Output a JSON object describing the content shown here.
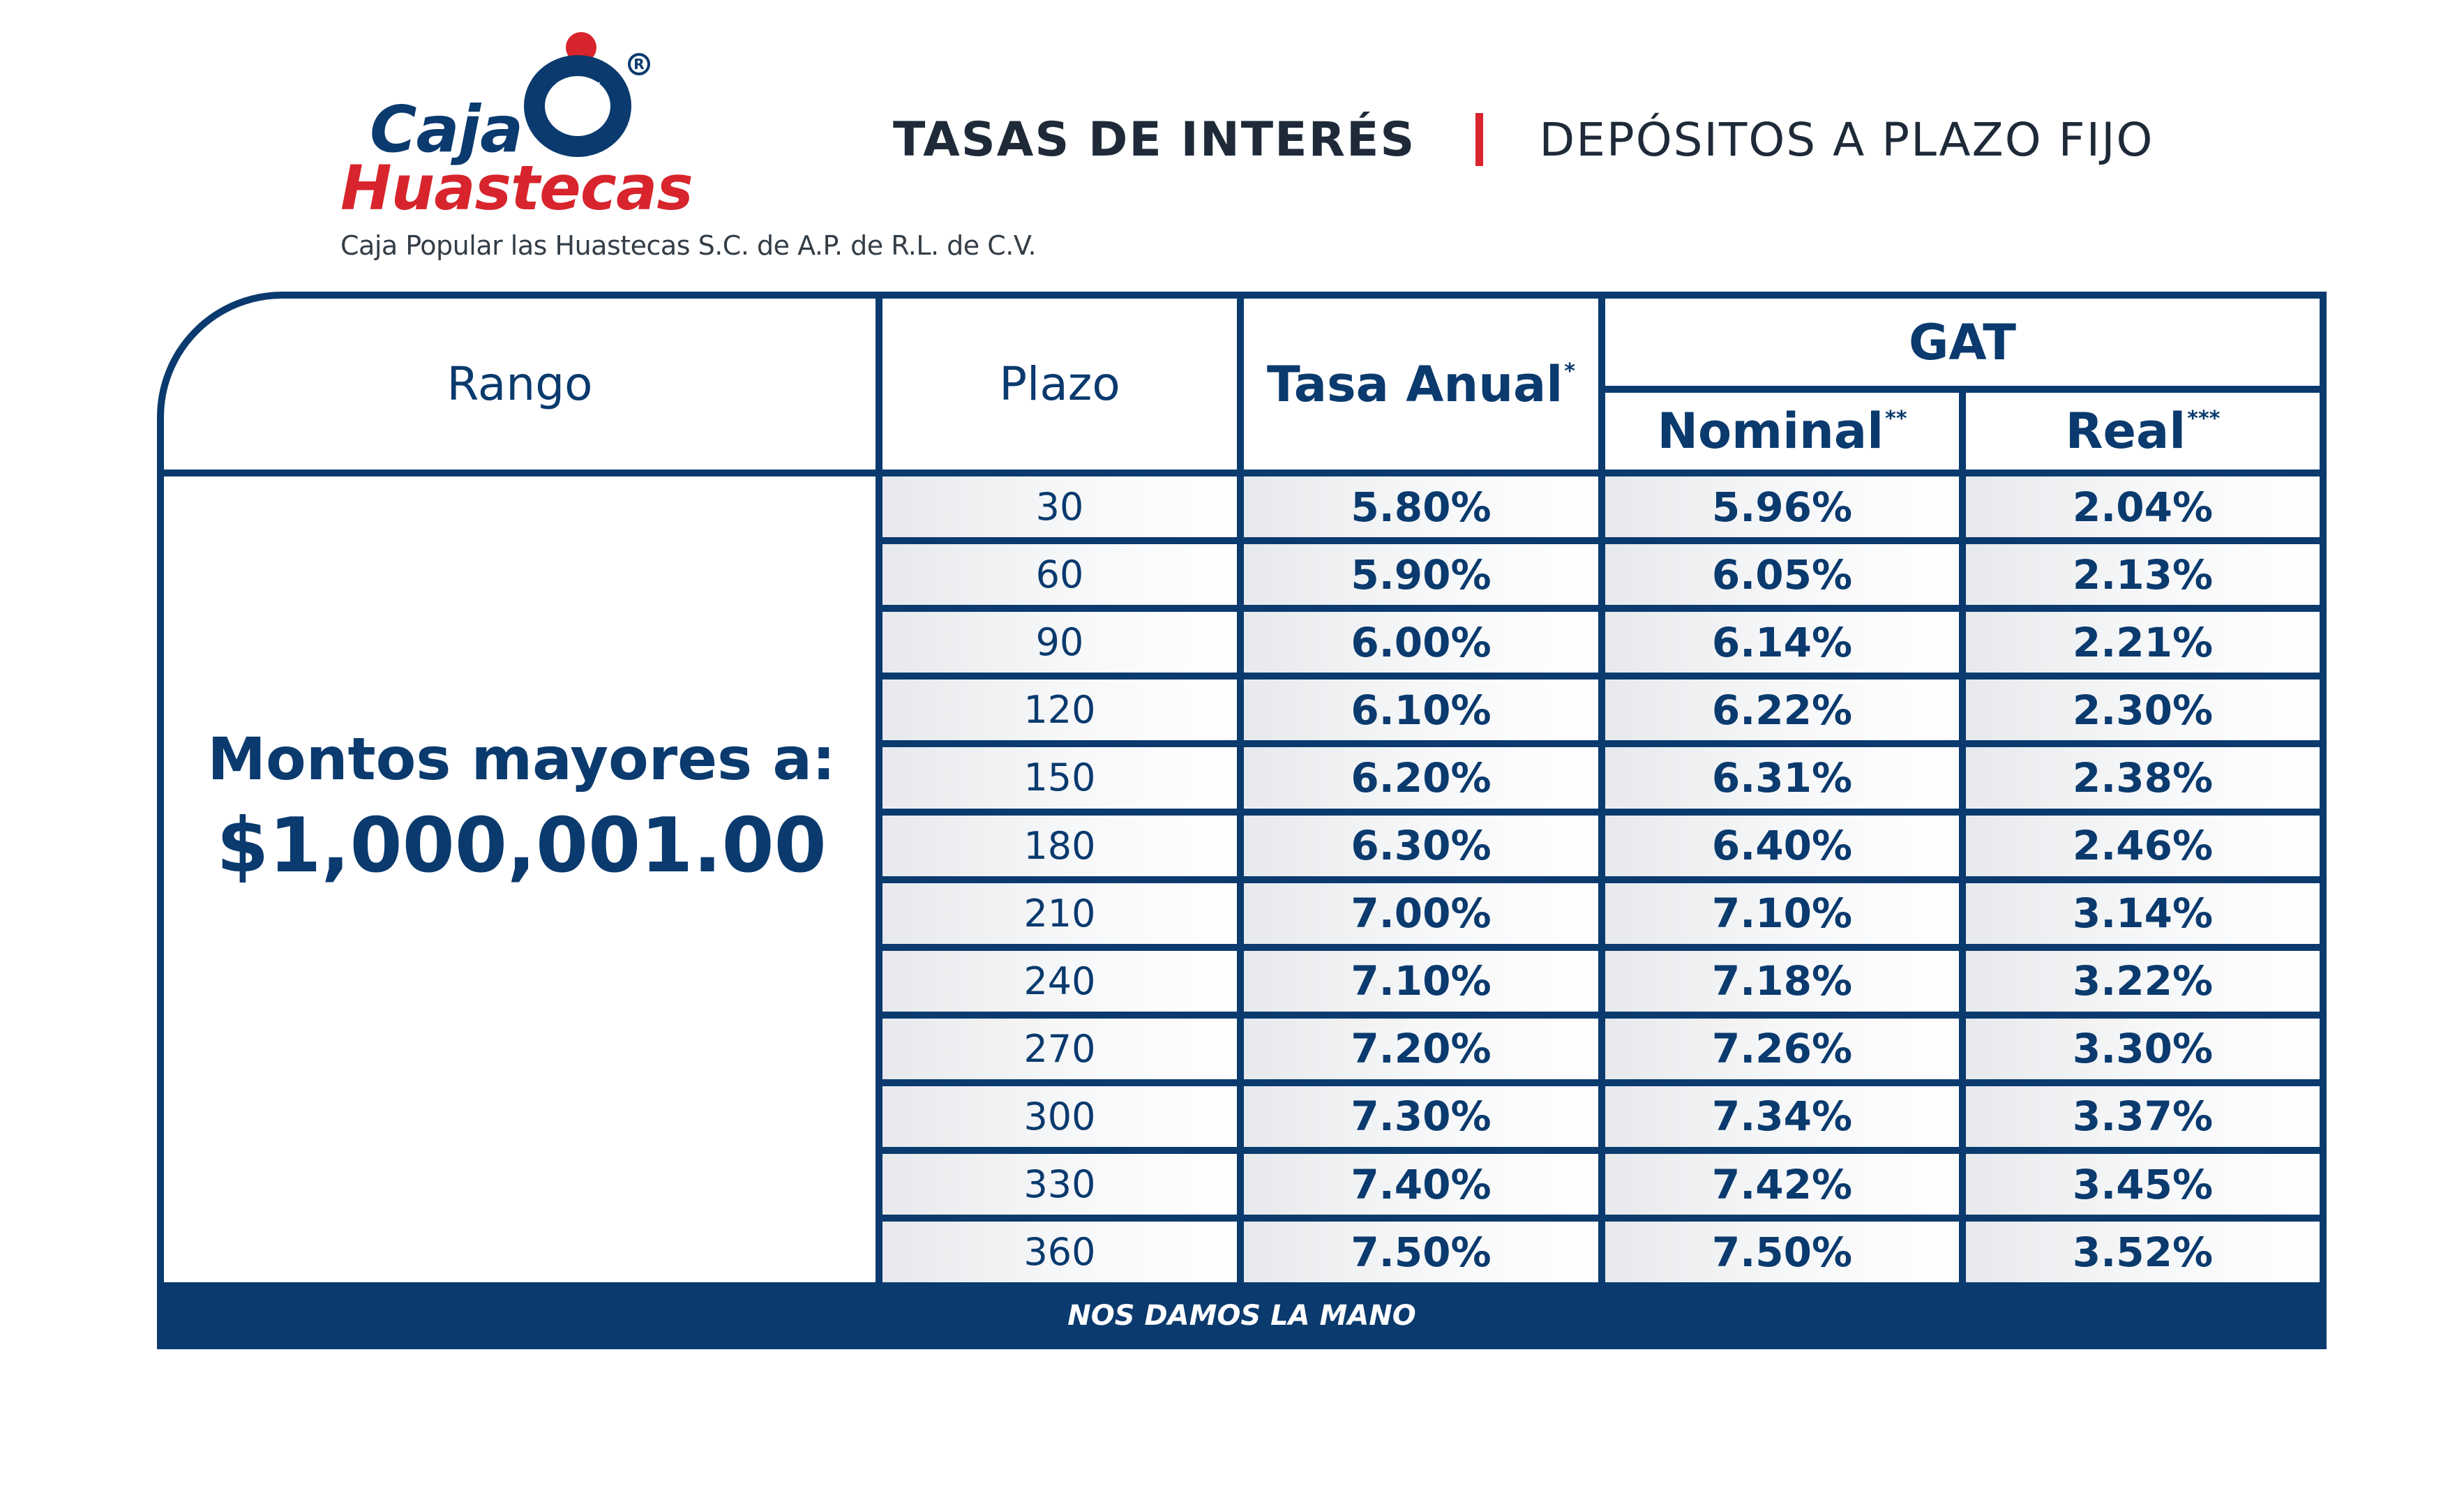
{
  "logo": {
    "line1": "Caja",
    "line2": "Huastecas",
    "registered_mark": "®",
    "legal_name": "Caja Popular las Huastecas S.C. de A.P. de R.L. de C.V.",
    "colors": {
      "blue": "#0a3a6e",
      "red": "#d8242c"
    }
  },
  "header": {
    "title": "TASAS DE INTERÉS",
    "subtitle": "DEPÓSITOS A PLAZO FIJO",
    "divider_color": "#d8242c"
  },
  "table": {
    "columns": {
      "rango": "Rango",
      "plazo": "Plazo",
      "tasa_anual": "Tasa Anual",
      "tasa_anual_mark": "*",
      "gat": "GAT",
      "nominal": "Nominal",
      "nominal_mark": "**",
      "real": "Real",
      "real_mark": "***"
    },
    "rango_label": "Montos mayores a:",
    "rango_amount": "$1,000,001.00",
    "rows": [
      {
        "plazo": "30",
        "tasa_anual": "5.80%",
        "gat_nominal": "5.96%",
        "gat_real": "2.04%"
      },
      {
        "plazo": "60",
        "tasa_anual": "5.90%",
        "gat_nominal": "6.05%",
        "gat_real": "2.13%"
      },
      {
        "plazo": "90",
        "tasa_anual": "6.00%",
        "gat_nominal": "6.14%",
        "gat_real": "2.21%"
      },
      {
        "plazo": "120",
        "tasa_anual": "6.10%",
        "gat_nominal": "6.22%",
        "gat_real": "2.30%"
      },
      {
        "plazo": "150",
        "tasa_anual": "6.20%",
        "gat_nominal": "6.31%",
        "gat_real": "2.38%"
      },
      {
        "plazo": "180",
        "tasa_anual": "6.30%",
        "gat_nominal": "6.40%",
        "gat_real": "2.46%"
      },
      {
        "plazo": "210",
        "tasa_anual": "7.00%",
        "gat_nominal": "7.10%",
        "gat_real": "3.14%"
      },
      {
        "plazo": "240",
        "tasa_anual": "7.10%",
        "gat_nominal": "7.18%",
        "gat_real": "3.22%"
      },
      {
        "plazo": "270",
        "tasa_anual": "7.20%",
        "gat_nominal": "7.26%",
        "gat_real": "3.30%"
      },
      {
        "plazo": "300",
        "tasa_anual": "7.30%",
        "gat_nominal": "7.34%",
        "gat_real": "3.37%"
      },
      {
        "plazo": "330",
        "tasa_anual": "7.40%",
        "gat_nominal": "7.42%",
        "gat_real": "3.45%"
      },
      {
        "plazo": "360",
        "tasa_anual": "7.50%",
        "gat_nominal": "7.50%",
        "gat_real": "3.52%"
      }
    ]
  },
  "footer": {
    "slogan": "NOS DAMOS LA MANO"
  },
  "theme": {
    "primary": "#0a3a6e",
    "accent": "#d8242c",
    "background": "#ffffff"
  }
}
